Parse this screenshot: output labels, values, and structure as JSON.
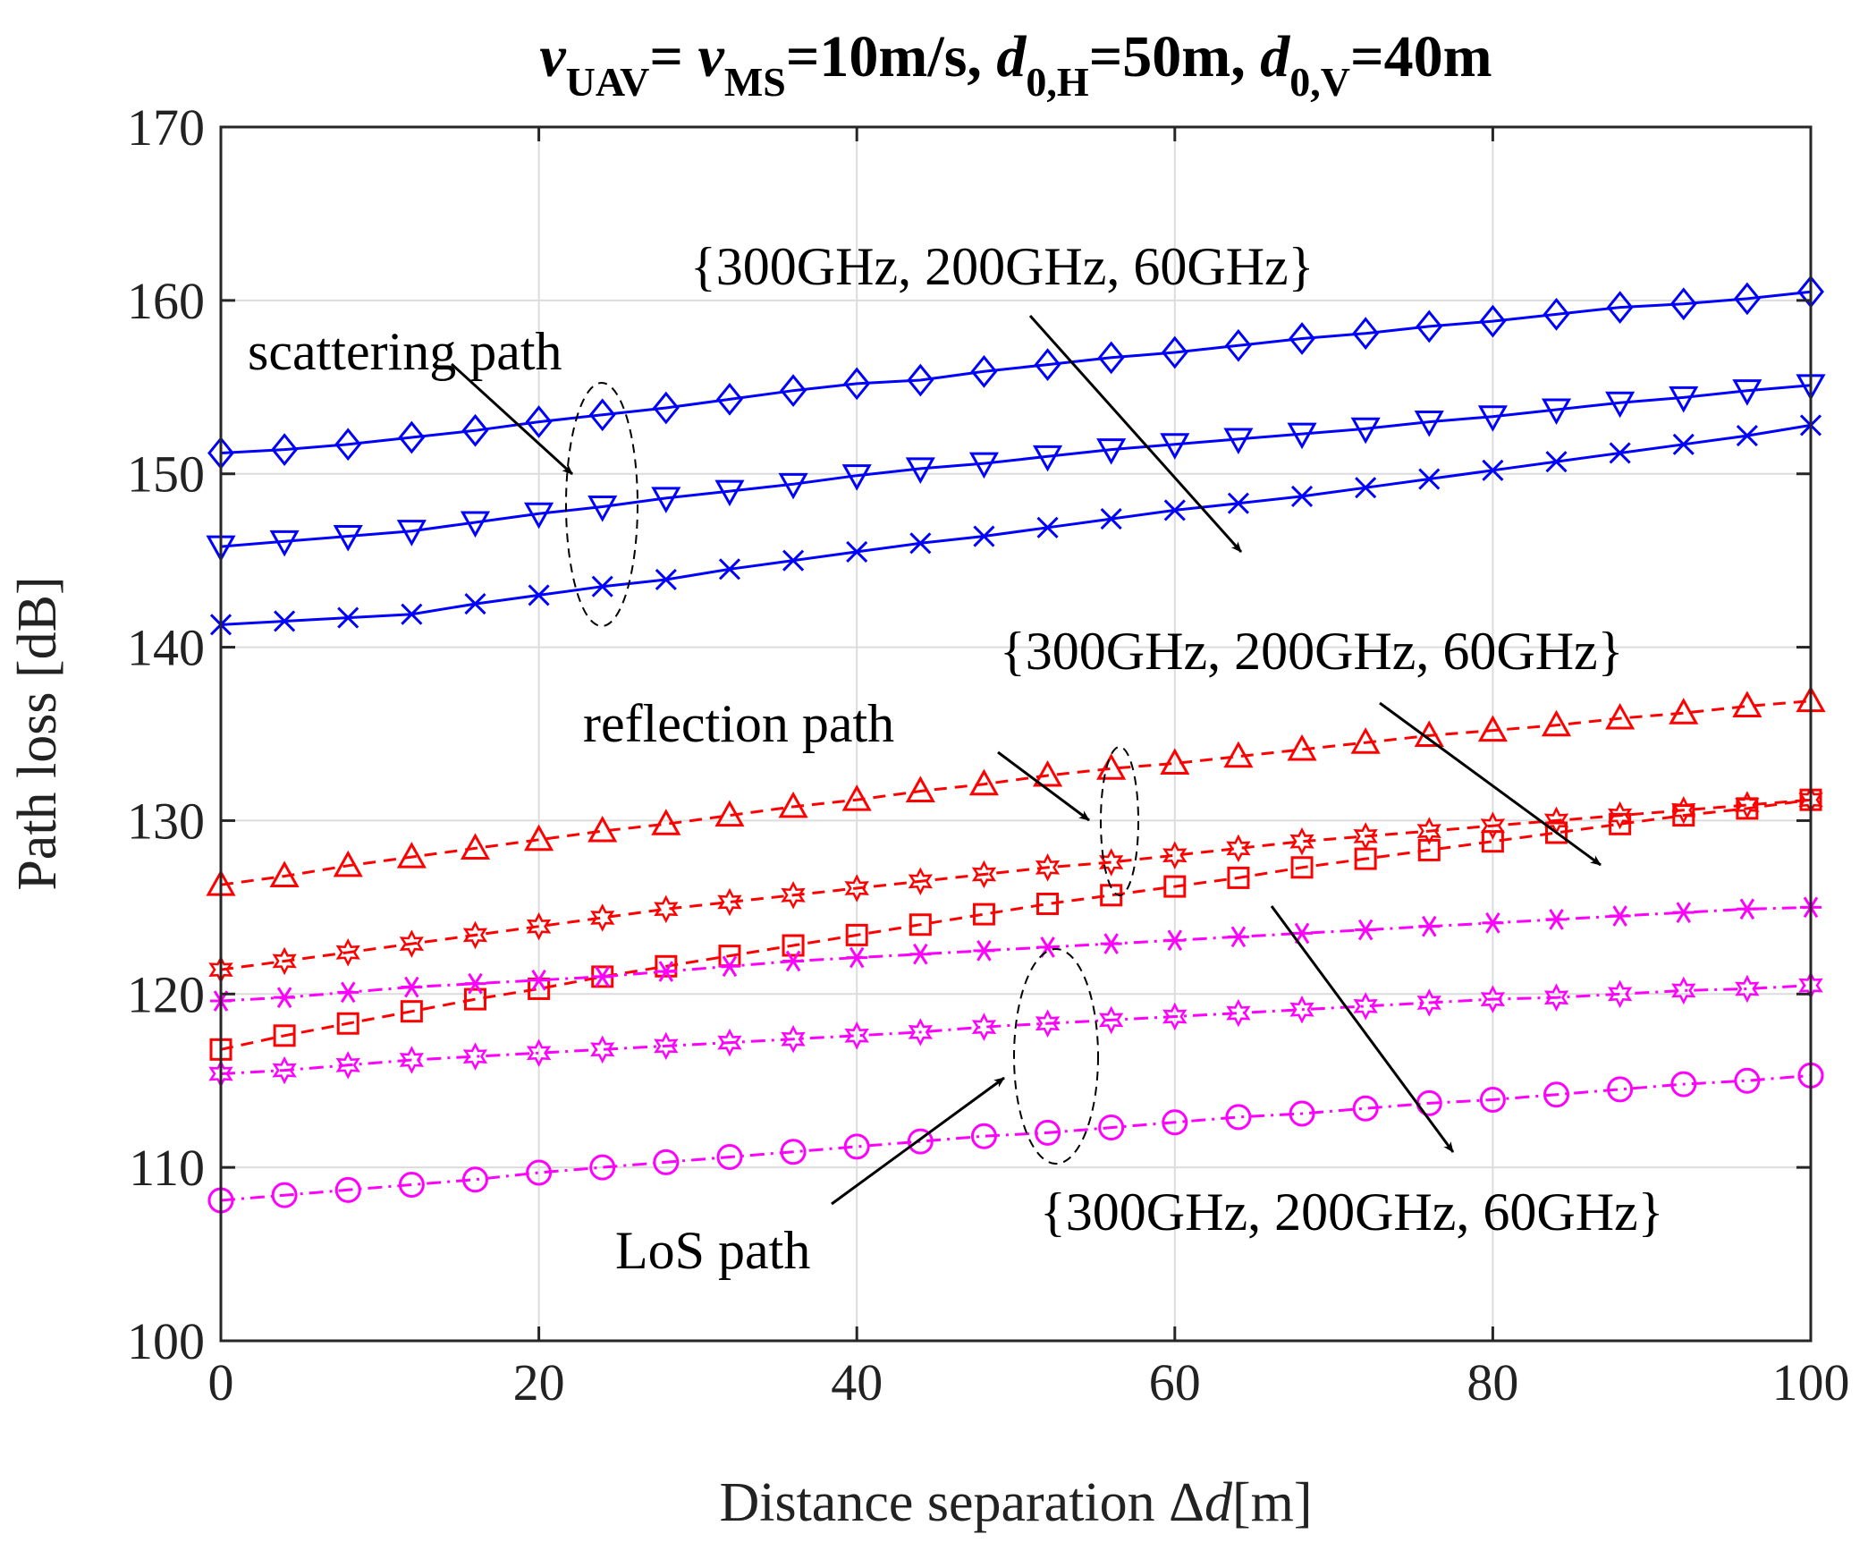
{
  "chart_data": {
    "type": "line",
    "title": {
      "v1": "v",
      "v1_sub": "UAV",
      "eq1": "= ",
      "v2": "v",
      "v2_sub": "MS",
      "eq2": "=10m/s, ",
      "d1": "d",
      "d1_sub": "0,H",
      "eq3": "=50m, ",
      "d2": "d",
      "d2_sub": "0,V",
      "eq4": "=40m"
    },
    "xlabel": {
      "prefix": "Distance separation Δ",
      "var": "d",
      "suffix": "[m]"
    },
    "ylabel": "Path loss [dB]",
    "xlim": [
      0,
      100
    ],
    "ylim": [
      100,
      170
    ],
    "xticks": [
      "0",
      "20",
      "40",
      "60",
      "80",
      "100"
    ],
    "yticks": [
      "100",
      "110",
      "120",
      "130",
      "140",
      "150",
      "160",
      "170"
    ],
    "grid": true,
    "x": [
      0,
      4,
      8,
      12,
      16,
      20,
      24,
      28,
      32,
      36,
      40,
      44,
      48,
      52,
      56,
      60,
      64,
      68,
      72,
      76,
      80,
      84,
      88,
      92,
      96,
      100
    ],
    "series": [
      {
        "marker": "diamond",
        "color": "#0000ff",
        "dash": "solid",
        "values": [
          151.2,
          151.4,
          151.7,
          152.1,
          152.5,
          153.0,
          153.4,
          153.8,
          154.3,
          154.8,
          155.2,
          155.4,
          155.9,
          156.3,
          156.7,
          157.0,
          157.4,
          157.8,
          158.1,
          158.5,
          158.8,
          159.2,
          159.6,
          159.8,
          160.1,
          160.5
        ]
      },
      {
        "marker": "triangle-down",
        "color": "#0000ff",
        "dash": "solid",
        "values": [
          145.8,
          146.1,
          146.4,
          146.7,
          147.2,
          147.7,
          148.1,
          148.6,
          149.0,
          149.4,
          149.9,
          150.3,
          150.6,
          151.0,
          151.4,
          151.7,
          152.0,
          152.3,
          152.6,
          153.0,
          153.3,
          153.7,
          154.1,
          154.4,
          154.8,
          155.1
        ]
      },
      {
        "marker": "x",
        "color": "#0000ff",
        "dash": "solid",
        "values": [
          141.3,
          141.5,
          141.7,
          141.9,
          142.5,
          143.0,
          143.5,
          143.9,
          144.5,
          145.0,
          145.5,
          146.0,
          146.4,
          146.9,
          147.4,
          147.9,
          148.3,
          148.7,
          149.2,
          149.7,
          150.2,
          150.7,
          151.2,
          151.7,
          152.2,
          152.8
        ]
      },
      {
        "marker": "triangle-up",
        "color": "#ff0000",
        "dash": "dashed",
        "values": [
          126.3,
          126.8,
          127.4,
          127.9,
          128.4,
          128.9,
          129.4,
          129.8,
          130.3,
          130.8,
          131.2,
          131.7,
          132.1,
          132.6,
          133.0,
          133.3,
          133.7,
          134.1,
          134.5,
          134.9,
          135.2,
          135.5,
          135.9,
          136.2,
          136.6,
          136.9
        ]
      },
      {
        "marker": "hexagram",
        "color": "#ff0000",
        "dash": "dashed",
        "values": [
          121.4,
          121.9,
          122.4,
          122.9,
          123.4,
          123.9,
          124.4,
          124.9,
          125.3,
          125.7,
          126.1,
          126.5,
          126.9,
          127.3,
          127.6,
          128.0,
          128.4,
          128.8,
          129.1,
          129.4,
          129.7,
          130.0,
          130.3,
          130.6,
          130.9,
          131.2
        ]
      },
      {
        "marker": "square",
        "color": "#ff0000",
        "dash": "dashed",
        "values": [
          116.8,
          117.6,
          118.3,
          119.0,
          119.7,
          120.3,
          121.0,
          121.6,
          122.2,
          122.8,
          123.4,
          124.0,
          124.6,
          125.2,
          125.7,
          126.2,
          126.7,
          127.3,
          127.8,
          128.3,
          128.8,
          129.3,
          129.8,
          130.3,
          130.7,
          131.2
        ]
      },
      {
        "marker": "asterisk",
        "color": "#ff00ff",
        "dash": "dashdot",
        "values": [
          119.6,
          119.8,
          120.1,
          120.4,
          120.6,
          120.8,
          121.0,
          121.3,
          121.6,
          121.9,
          122.1,
          122.3,
          122.5,
          122.7,
          122.9,
          123.1,
          123.3,
          123.5,
          123.7,
          123.9,
          124.1,
          124.3,
          124.5,
          124.7,
          124.9,
          125.0
        ]
      },
      {
        "marker": "hexagram",
        "color": "#ff00ff",
        "dash": "dashdot",
        "values": [
          115.4,
          115.6,
          115.9,
          116.2,
          116.4,
          116.6,
          116.8,
          117.0,
          117.2,
          117.4,
          117.6,
          117.8,
          118.1,
          118.3,
          118.5,
          118.7,
          118.9,
          119.1,
          119.3,
          119.5,
          119.7,
          119.8,
          120.0,
          120.2,
          120.3,
          120.5
        ]
      },
      {
        "marker": "circle",
        "color": "#ff00ff",
        "dash": "dashdot",
        "values": [
          108.1,
          108.4,
          108.7,
          109.0,
          109.3,
          109.7,
          110.0,
          110.3,
          110.6,
          110.9,
          111.2,
          111.5,
          111.8,
          112.0,
          112.3,
          112.6,
          112.9,
          113.1,
          113.4,
          113.7,
          113.9,
          114.2,
          114.5,
          114.8,
          115.0,
          115.3
        ]
      }
    ],
    "annotations": {
      "freq_label_top": "{300GHz, 200GHz, 60GHz}",
      "freq_label_mid": "{300GHz, 200GHz, 60GHz}",
      "freq_label_bottom": "{300GHz, 200GHz, 60GHz}",
      "scattering": "scattering path",
      "reflection": "reflection path",
      "los": "LoS path"
    }
  }
}
